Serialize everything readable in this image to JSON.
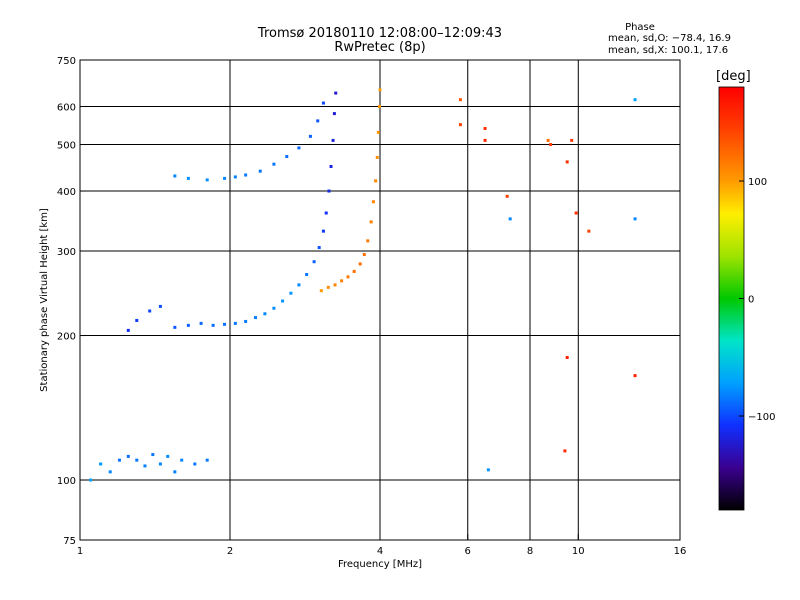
{
  "chart_data": {
    "type": "scatter",
    "title": "Tromsø 20180110 12:08:00–12:09:43",
    "subtitle": "RwPretec (8p)",
    "xlabel": "Frequency [MHz]",
    "ylabel": "Stationary phase Virtual Height [km]",
    "x_scale": "log",
    "y_scale": "log",
    "xlim": [
      1,
      16
    ],
    "ylim": [
      75,
      750
    ],
    "x_ticks": [
      "1",
      "2",
      "4",
      "6",
      "8",
      "10",
      "16"
    ],
    "y_ticks": [
      "75",
      "100",
      "200",
      "300",
      "400",
      "500",
      "600",
      "750"
    ],
    "grid_x": [
      2,
      4,
      6,
      8,
      10
    ],
    "grid_y": [
      100,
      200,
      300,
      400,
      500,
      600
    ],
    "grid": true,
    "colorbar": {
      "unit": "[deg]",
      "min": -180,
      "max": 180,
      "ticks": [
        "100",
        "0",
        "−100"
      ],
      "tick_values": [
        100,
        0,
        -100
      ]
    },
    "stats": {
      "header": "Phase",
      "o_mode": "mean, sd,O: −78.4, 16.9",
      "x_mode": "mean, sd,X: 100.1, 17.6"
    },
    "series": [
      {
        "mode": "o-trace lower",
        "points": [
          [
            1.25,
            205,
            -110
          ],
          [
            1.3,
            215,
            -105
          ],
          [
            1.38,
            225,
            -100
          ],
          [
            1.45,
            230,
            -98
          ],
          [
            1.55,
            208,
            -95
          ],
          [
            1.65,
            210,
            -92
          ],
          [
            1.75,
            212,
            -90
          ],
          [
            1.85,
            210,
            -88
          ],
          [
            1.95,
            211,
            -86
          ],
          [
            2.05,
            212,
            -85
          ],
          [
            2.15,
            214,
            -84
          ],
          [
            2.25,
            218,
            -82
          ],
          [
            2.35,
            222,
            -80
          ],
          [
            2.45,
            228,
            -78
          ],
          [
            2.55,
            236,
            -76
          ],
          [
            2.65,
            245,
            -75
          ],
          [
            2.75,
            255,
            -80
          ],
          [
            2.85,
            268,
            -85
          ],
          [
            2.95,
            285,
            -92
          ],
          [
            3.02,
            305,
            -98
          ],
          [
            3.08,
            330,
            -105
          ],
          [
            3.12,
            360,
            -110
          ],
          [
            3.16,
            400,
            -115
          ],
          [
            3.19,
            450,
            -118
          ],
          [
            3.22,
            510,
            -120
          ],
          [
            3.24,
            580,
            -122
          ],
          [
            3.26,
            640,
            -125
          ]
        ]
      },
      {
        "mode": "o-trace upper",
        "points": [
          [
            1.55,
            430,
            -80
          ],
          [
            1.65,
            425,
            -78
          ],
          [
            1.8,
            422,
            -78
          ],
          [
            1.95,
            425,
            -80
          ],
          [
            2.05,
            428,
            -82
          ],
          [
            2.15,
            432,
            -84
          ],
          [
            2.3,
            440,
            -85
          ],
          [
            2.45,
            455,
            -86
          ],
          [
            2.6,
            472,
            -88
          ],
          [
            2.75,
            492,
            -90
          ],
          [
            2.9,
            520,
            -92
          ],
          [
            3.0,
            560,
            -96
          ],
          [
            3.08,
            610,
            -100
          ]
        ]
      },
      {
        "mode": "x-trace",
        "points": [
          [
            3.05,
            248,
            100
          ],
          [
            3.15,
            252,
            105
          ],
          [
            3.25,
            255,
            110
          ],
          [
            3.35,
            260,
            112
          ],
          [
            3.45,
            265,
            115
          ],
          [
            3.55,
            272,
            118
          ],
          [
            3.65,
            282,
            120
          ],
          [
            3.72,
            295,
            118
          ],
          [
            3.78,
            315,
            115
          ],
          [
            3.84,
            345,
            112
          ],
          [
            3.88,
            380,
            110
          ],
          [
            3.92,
            420,
            108
          ],
          [
            3.95,
            470,
            105
          ],
          [
            3.97,
            530,
            102
          ],
          [
            3.99,
            600,
            100
          ],
          [
            4.0,
            650,
            98
          ]
        ]
      },
      {
        "mode": "low-height echoes",
        "points": [
          [
            1.05,
            100,
            -70
          ],
          [
            1.1,
            108,
            -75
          ],
          [
            1.15,
            104,
            -80
          ],
          [
            1.2,
            110,
            -85
          ],
          [
            1.25,
            112,
            -88
          ],
          [
            1.3,
            110,
            -85
          ],
          [
            1.35,
            107,
            -82
          ],
          [
            1.4,
            113,
            -85
          ],
          [
            1.45,
            108,
            -80
          ],
          [
            1.5,
            112,
            -78
          ],
          [
            1.55,
            104,
            -82
          ],
          [
            1.6,
            110,
            -80
          ],
          [
            1.7,
            108,
            -85
          ],
          [
            1.8,
            110,
            -84
          ]
        ]
      },
      {
        "mode": "sporadic",
        "points": [
          [
            5.8,
            620,
            130
          ],
          [
            5.8,
            550,
            140
          ],
          [
            6.5,
            540,
            150
          ],
          [
            6.5,
            510,
            155
          ],
          [
            7.2,
            390,
            140
          ],
          [
            7.3,
            350,
            -80
          ],
          [
            8.7,
            510,
            120
          ],
          [
            8.8,
            500,
            140
          ],
          [
            9.5,
            460,
            150
          ],
          [
            9.7,
            510,
            145
          ],
          [
            9.9,
            360,
            150
          ],
          [
            10.5,
            330,
            140
          ],
          [
            13,
            620,
            -70
          ],
          [
            13,
            350,
            -80
          ],
          [
            9.5,
            180,
            160
          ],
          [
            9.4,
            115,
            155
          ],
          [
            6.6,
            105,
            -75
          ],
          [
            13,
            165,
            160
          ]
        ]
      }
    ]
  }
}
